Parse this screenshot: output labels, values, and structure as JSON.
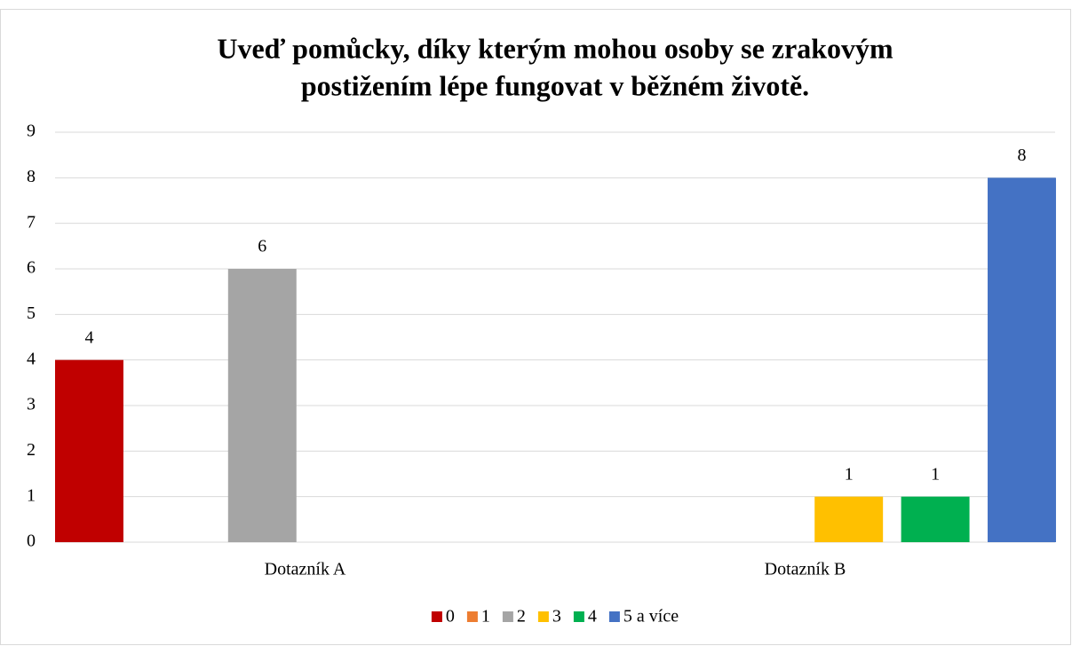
{
  "chart_data": {
    "type": "bar",
    "title": [
      "Uveď pomůcky, díky kterým mohou osoby se zrakovým",
      "postižením lépe fungovat v běžném životě."
    ],
    "categories": [
      "Dotazník A",
      "Dotazník B"
    ],
    "series": [
      {
        "name": "0",
        "color": "#c00000",
        "values": [
          4,
          null
        ]
      },
      {
        "name": "1",
        "color": "#ed7d31",
        "values": [
          null,
          null
        ]
      },
      {
        "name": "2",
        "color": "#a5a5a5",
        "values": [
          6,
          null
        ]
      },
      {
        "name": "3",
        "color": "#ffc000",
        "values": [
          null,
          1
        ]
      },
      {
        "name": "4",
        "color": "#00b050",
        "values": [
          null,
          1
        ]
      },
      {
        "name": "5 a více",
        "color": "#4472c4",
        "values": [
          null,
          8
        ]
      }
    ],
    "ylim": [
      0,
      9
    ],
    "yticks": [
      0,
      1,
      2,
      3,
      4,
      5,
      6,
      7,
      8,
      9
    ],
    "grid": true,
    "legend": "bottom"
  }
}
